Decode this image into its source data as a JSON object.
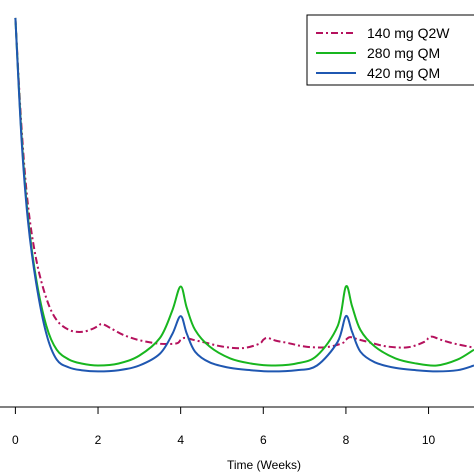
{
  "chart_data": {
    "type": "line",
    "xlabel": "Time (Weeks)",
    "ylabel": "",
    "xlim": [
      -0.3,
      11.1
    ],
    "ylim": [
      0,
      1.0
    ],
    "xticks": [
      0,
      2,
      4,
      6,
      8,
      10
    ],
    "tick_labels": [
      "0",
      "2",
      "4",
      "6",
      "8",
      "10"
    ],
    "legend_position": "top-right",
    "grid": false,
    "series": [
      {
        "name": "140 mg Q2W",
        "color": "#b5115d",
        "dash": "dashed",
        "x": [
          0,
          0.15,
          0.3,
          0.5,
          0.75,
          1.0,
          1.3,
          1.6,
          1.85,
          2.0,
          2.1,
          2.3,
          2.6,
          3.0,
          3.5,
          3.9,
          4.0,
          4.1,
          4.3,
          4.6,
          5.0,
          5.5,
          5.9,
          6.0,
          6.1,
          6.3,
          6.6,
          7.0,
          7.5,
          7.9,
          8.0,
          8.1,
          8.3,
          8.6,
          9.0,
          9.5,
          9.9,
          10.0,
          10.1,
          10.3,
          10.6,
          11.1
        ],
        "y": [
          0.98,
          0.7,
          0.51,
          0.37,
          0.27,
          0.215,
          0.19,
          0.185,
          0.192,
          0.2,
          0.205,
          0.195,
          0.178,
          0.164,
          0.155,
          0.156,
          0.165,
          0.17,
          0.165,
          0.158,
          0.148,
          0.144,
          0.155,
          0.165,
          0.17,
          0.163,
          0.157,
          0.148,
          0.146,
          0.156,
          0.165,
          0.172,
          0.166,
          0.158,
          0.148,
          0.146,
          0.16,
          0.17,
          0.173,
          0.165,
          0.156,
          0.145
        ]
      },
      {
        "name": "280 mg QM",
        "color": "#18b61f",
        "dash": "solid",
        "x": [
          0,
          0.15,
          0.3,
          0.5,
          0.75,
          1.0,
          1.3,
          1.6,
          2.0,
          2.5,
          3.0,
          3.5,
          3.8,
          4.0,
          4.15,
          4.35,
          4.7,
          5.2,
          5.7,
          6.2,
          6.8,
          7.3,
          7.8,
          8.0,
          8.15,
          8.35,
          8.7,
          9.2,
          9.7,
          10.2,
          10.7,
          11.1
        ],
        "y": [
          0.98,
          0.68,
          0.48,
          0.32,
          0.2,
          0.14,
          0.115,
          0.105,
          0.1,
          0.105,
          0.125,
          0.17,
          0.24,
          0.3,
          0.245,
          0.19,
          0.148,
          0.118,
          0.105,
          0.1,
          0.105,
          0.125,
          0.2,
          0.3,
          0.25,
          0.19,
          0.148,
          0.118,
          0.105,
          0.1,
          0.115,
          0.14
        ]
      },
      {
        "name": "420 mg QM",
        "color": "#1f57b1",
        "dash": "solid",
        "x": [
          0,
          0.15,
          0.3,
          0.5,
          0.75,
          1.0,
          1.3,
          1.6,
          2.0,
          2.5,
          3.0,
          3.5,
          3.8,
          4.0,
          4.15,
          4.35,
          4.7,
          5.2,
          5.7,
          6.2,
          6.8,
          7.3,
          7.8,
          8.0,
          8.15,
          8.35,
          8.7,
          9.2,
          9.7,
          10.2,
          10.7,
          11.1
        ],
        "y": [
          0.98,
          0.67,
          0.47,
          0.31,
          0.18,
          0.115,
          0.095,
          0.088,
          0.085,
          0.088,
          0.1,
          0.13,
          0.18,
          0.225,
          0.18,
          0.135,
          0.108,
          0.094,
          0.088,
          0.085,
          0.088,
          0.1,
          0.16,
          0.225,
          0.185,
          0.135,
          0.108,
          0.094,
          0.088,
          0.085,
          0.088,
          0.1
        ]
      }
    ]
  }
}
